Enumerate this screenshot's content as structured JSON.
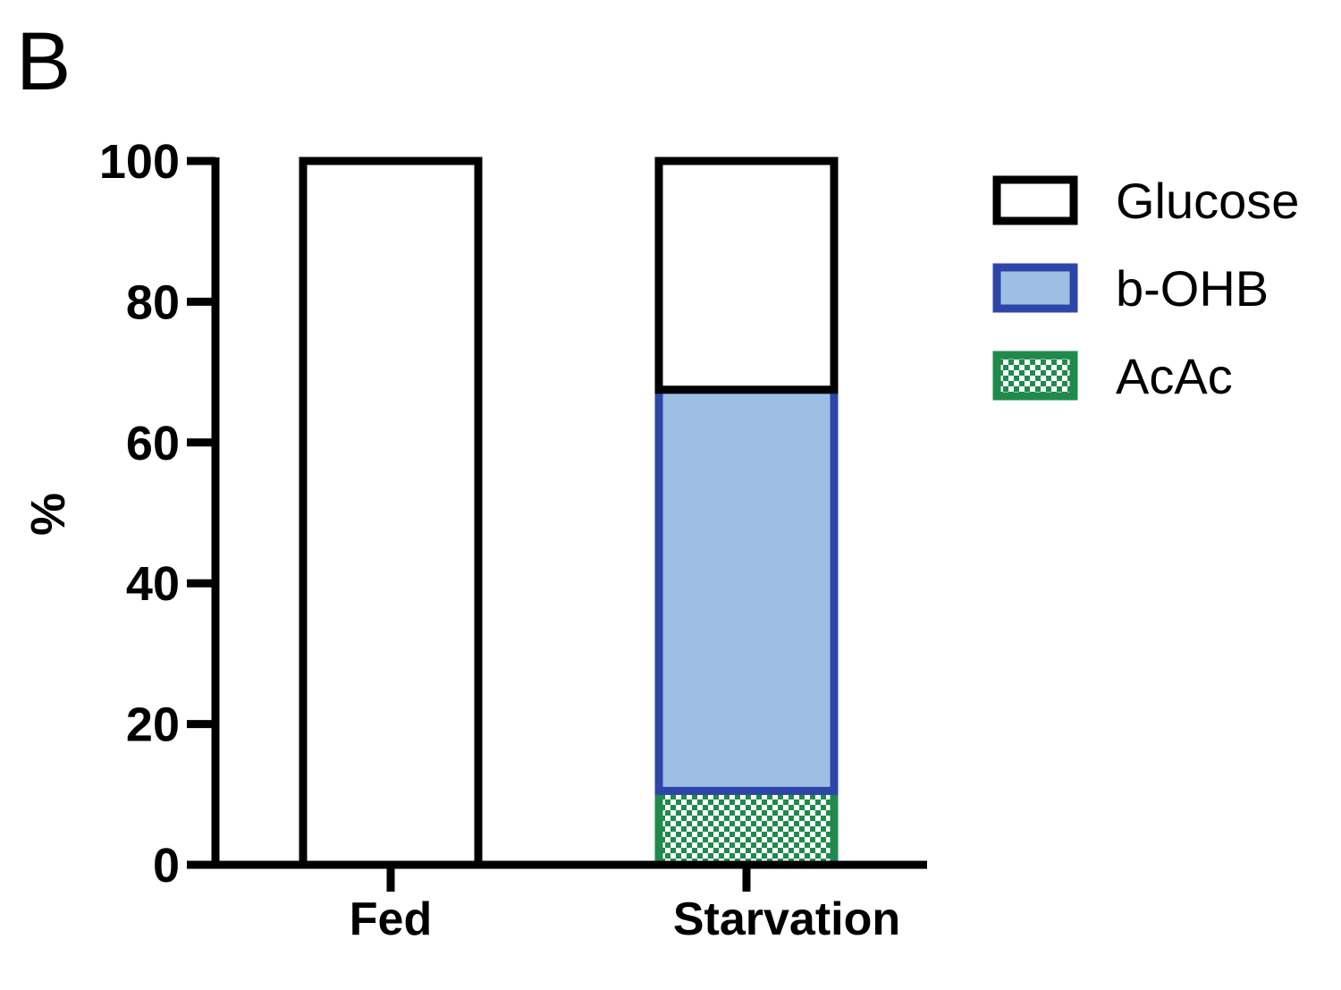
{
  "panel_label": "B",
  "chart_data": {
    "type": "bar",
    "stacked": true,
    "categories": [
      "Fed",
      "Starvation"
    ],
    "ylabel": "%",
    "xlabel": "",
    "ylim": [
      0,
      100
    ],
    "yticks": [
      0,
      20,
      40,
      60,
      80,
      100
    ],
    "grid": false,
    "legend_position": "right",
    "series": [
      {
        "name": "AcAc",
        "values": [
          0,
          10.5
        ],
        "fill": "#1f8a4c",
        "stroke": "#1f8a4c",
        "pattern": "checker"
      },
      {
        "name": "b-OHB",
        "values": [
          0,
          57
        ],
        "fill": "#9dbfe3",
        "stroke": "#2e45a8",
        "pattern": "solid"
      },
      {
        "name": "Glucose",
        "values": [
          100,
          32.5
        ],
        "fill": "#ffffff",
        "stroke": "#000000",
        "pattern": "solid"
      }
    ],
    "legend": [
      "Glucose",
      "b-OHB",
      "AcAc"
    ]
  }
}
